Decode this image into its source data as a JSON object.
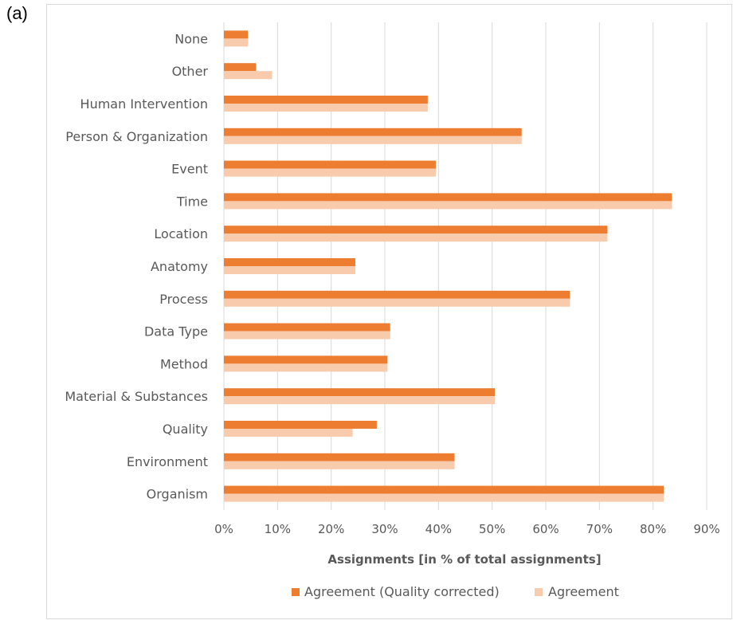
{
  "panel_label": "(a)",
  "colors": {
    "quality_corrected": "#ED7D31",
    "agreement": "#F8CBAD",
    "grid": "#d9d9d9",
    "text": "#595959"
  },
  "chart_data": {
    "type": "bar",
    "orientation": "horizontal",
    "title": "",
    "xlabel": "Assignments [in % of total assignments]",
    "ylabel": "",
    "xlim": [
      0,
      90
    ],
    "xticks": [
      "0%",
      "10%",
      "20%",
      "30%",
      "40%",
      "50%",
      "60%",
      "70%",
      "80%",
      "90%"
    ],
    "grid": true,
    "legend_position": "bottom",
    "categories": [
      "None",
      "Other",
      "Human Intervention",
      "Person & Organization",
      "Event",
      "Time",
      "Location",
      "Anatomy",
      "Process",
      "Data Type",
      "Method",
      "Material & Substances",
      "Quality",
      "Environment",
      "Organism"
    ],
    "series": [
      {
        "name": "Agreement (Quality corrected)",
        "values": [
          4.5,
          6,
          38,
          55.5,
          39.5,
          83.5,
          71.5,
          24.5,
          64.5,
          31,
          30.5,
          50.5,
          28.5,
          43,
          82
        ]
      },
      {
        "name": "Agreement",
        "values": [
          4.5,
          9,
          38,
          55.5,
          39.5,
          83.5,
          71.5,
          24.5,
          64.5,
          31,
          30.5,
          50.5,
          24,
          43,
          82
        ]
      }
    ]
  }
}
